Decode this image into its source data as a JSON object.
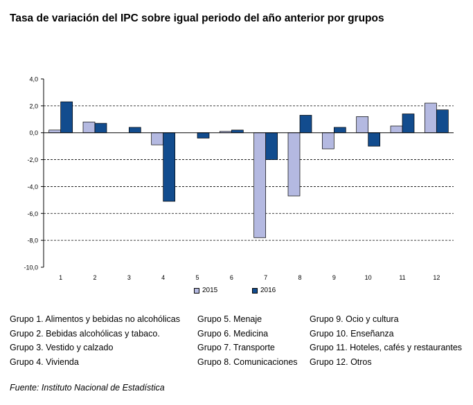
{
  "title": "Tasa de variación del IPC sobre igual periodo del año anterior por grupos",
  "chart_data": {
    "type": "bar",
    "categories": [
      "1",
      "2",
      "3",
      "4",
      "5",
      "6",
      "7",
      "8",
      "9",
      "10",
      "11",
      "12"
    ],
    "series": [
      {
        "name": "2015",
        "color": "#b4b9e1",
        "values": [
          0.2,
          0.8,
          0.0,
          -0.9,
          0.0,
          0.1,
          -7.8,
          -4.7,
          -1.2,
          1.2,
          0.5,
          2.2
        ]
      },
      {
        "name": "2016",
        "color": "#124c8e",
        "values": [
          2.3,
          0.7,
          0.4,
          -5.1,
          -0.4,
          0.2,
          -2.0,
          1.3,
          0.4,
          -1.0,
          1.4,
          1.7
        ]
      }
    ],
    "ylim": [
      -10,
      4
    ],
    "yticks": [
      "4,0",
      "2,0",
      "0,0",
      "-2,0",
      "-4,0",
      "-6,0",
      "-8,0",
      "-10,0"
    ],
    "ytick_values": [
      4,
      2,
      0,
      -2,
      -4,
      -6,
      -8,
      -10
    ],
    "grid": true,
    "legend_position": "bottom"
  },
  "groups": {
    "col1": [
      "Grupo 1. Alimentos y bebidas no alcohólicas",
      "Grupo 2. Bebidas alcohólicas y  tabaco.",
      "Grupo 3. Vestido y calzado",
      "Grupo 4. Vivienda"
    ],
    "col2": [
      "Grupo 5. Menaje",
      "Grupo 6. Medicina",
      "Grupo 7. Transporte",
      "Grupo 8. Comunicaciones"
    ],
    "col3": [
      "Grupo 9. Ocio y cultura",
      "Grupo 10. Enseñanza",
      "Grupo 11. Hoteles, cafés y restaurantes",
      "Grupo 12. Otros"
    ]
  },
  "source": "Fuente: Instituto Nacional de Estadística"
}
